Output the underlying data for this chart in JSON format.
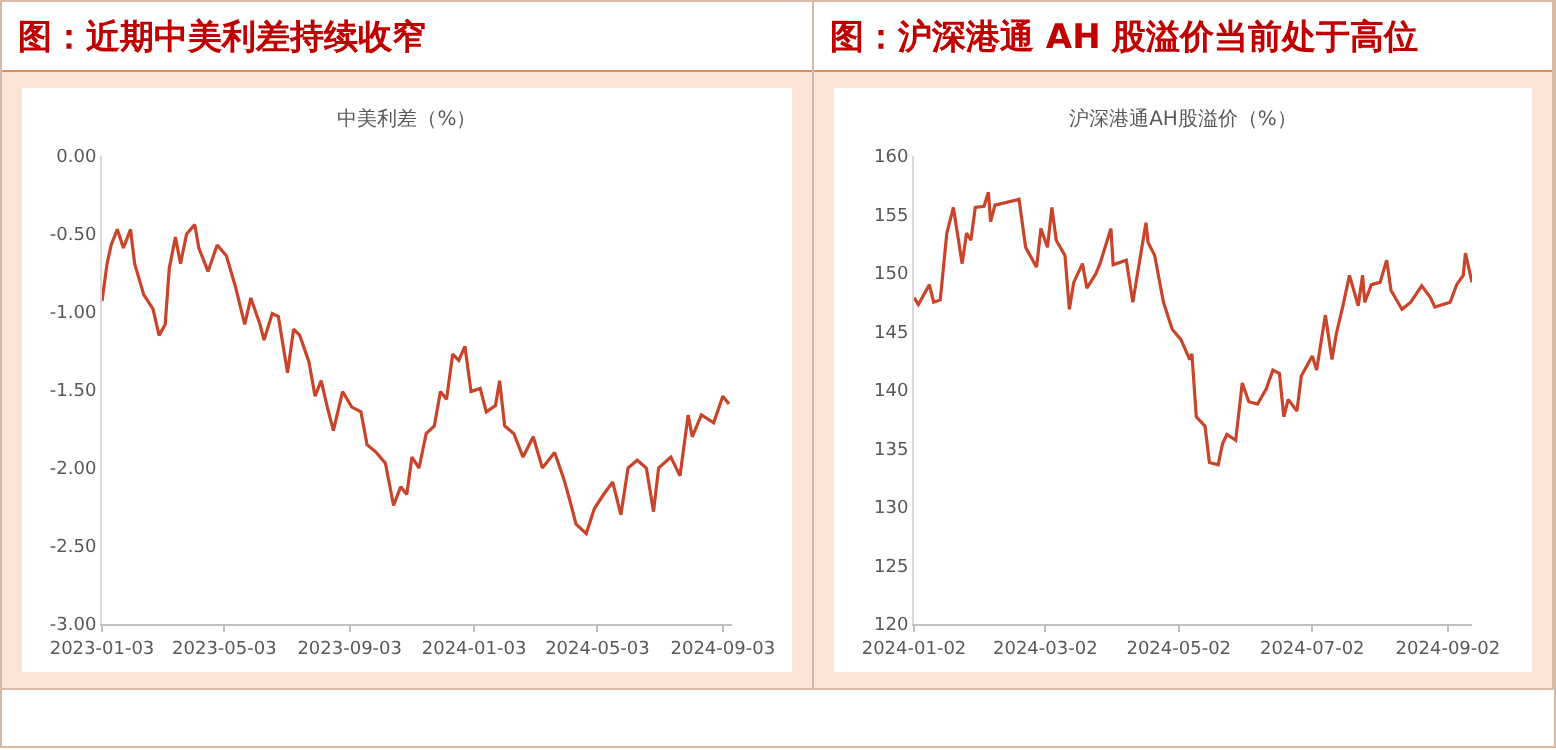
{
  "chart_data": [
    {
      "type": "line",
      "title": "图：近期中美利差持续收窄",
      "subtitle": "中美利差（%）",
      "x": [
        "2023-01-03",
        "2023-01-08",
        "2023-01-12",
        "2023-01-18",
        "2023-01-24",
        "2023-01-31",
        "2023-02-04",
        "2023-02-13",
        "2023-02-22",
        "2023-02-28",
        "2023-03-06",
        "2023-03-10",
        "2023-03-16",
        "2023-03-21",
        "2023-03-27",
        "2023-04-04",
        "2023-04-08",
        "2023-04-17",
        "2023-04-26",
        "2023-05-05",
        "2023-05-14",
        "2023-05-23",
        "2023-05-29",
        "2023-06-07",
        "2023-06-11",
        "2023-06-19",
        "2023-06-25",
        "2023-07-04",
        "2023-07-10",
        "2023-07-16",
        "2023-07-25",
        "2023-07-31",
        "2023-08-06",
        "2023-08-12",
        "2023-08-18",
        "2023-08-27",
        "2023-09-05",
        "2023-09-14",
        "2023-09-20",
        "2023-09-29",
        "2023-10-08",
        "2023-10-16",
        "2023-10-23",
        "2023-10-29",
        "2023-11-03",
        "2023-11-10",
        "2023-11-17",
        "2023-11-25",
        "2023-12-01",
        "2023-12-07",
        "2023-12-13",
        "2023-12-19",
        "2023-12-25",
        "2023-12-31",
        "2024-01-09",
        "2024-01-15",
        "2024-01-24",
        "2024-01-28",
        "2024-02-02",
        "2024-02-11",
        "2024-02-20",
        "2024-03-01",
        "2024-03-10",
        "2024-03-22",
        "2024-03-31",
        "2024-04-06",
        "2024-04-12",
        "2024-04-22",
        "2024-04-30",
        "2024-05-09",
        "2024-05-18",
        "2024-05-26",
        "2024-06-02",
        "2024-06-11",
        "2024-06-20",
        "2024-06-27",
        "2024-07-02",
        "2024-07-14",
        "2024-07-23",
        "2024-07-31",
        "2024-08-04",
        "2024-08-13",
        "2024-08-25",
        "2024-09-03",
        "2024-09-09"
      ],
      "series": [
        {
          "color": "#c8442a",
          "values": [
            -0.93,
            -0.69,
            -0.57,
            -0.47,
            -0.59,
            -0.47,
            -0.69,
            -0.89,
            -0.98,
            -1.15,
            -1.08,
            -0.72,
            -0.52,
            -0.69,
            -0.5,
            -0.44,
            -0.59,
            -0.74,
            -0.57,
            -0.64,
            -0.84,
            -1.08,
            -0.91,
            -1.08,
            -1.18,
            -1.01,
            -1.03,
            -1.39,
            -1.11,
            -1.15,
            -1.32,
            -1.54,
            -1.44,
            -1.61,
            -1.76,
            -1.51,
            -1.61,
            -1.64,
            -1.85,
            -1.9,
            -1.97,
            -2.24,
            -2.12,
            -2.17,
            -1.93,
            -2.0,
            -1.78,
            -1.73,
            -1.51,
            -1.56,
            -1.27,
            -1.31,
            -1.22,
            -1.51,
            -1.49,
            -1.64,
            -1.6,
            -1.44,
            -1.73,
            -1.78,
            -1.93,
            -1.8,
            -2.0,
            -1.9,
            -2.07,
            -2.21,
            -2.36,
            -2.42,
            -2.26,
            -2.17,
            -2.09,
            -2.3,
            -2.0,
            -1.95,
            -2.0,
            -2.28,
            -2.0,
            -1.93,
            -2.05,
            -1.66,
            -1.8,
            -1.66,
            -1.71,
            -1.54,
            -1.59
          ]
        }
      ],
      "xlim": [
        "2023-01-03",
        "2024-09-12"
      ],
      "xticks": [
        "2023-01-03",
        "2023-05-03",
        "2023-09-03",
        "2024-01-03",
        "2024-05-03",
        "2024-09-03"
      ],
      "ylim": [
        -3,
        0
      ],
      "yticks": [
        {
          "value": -3,
          "label": "-3.00"
        },
        {
          "value": -2.5,
          "label": "-2.50"
        },
        {
          "value": -2,
          "label": "-2.00"
        },
        {
          "value": -1.5,
          "label": "-1.50"
        },
        {
          "value": -1,
          "label": "-1.00"
        },
        {
          "value": -0.5,
          "label": "-0.50"
        },
        {
          "value": 0,
          "label": "0.00"
        }
      ]
    },
    {
      "type": "line",
      "title": "图：沪深港通 AH 股溢价当前处于高位",
      "subtitle": "沪深港通AH股溢价（%）",
      "x": [
        "2024-01-02",
        "2024-01-04",
        "2024-01-09",
        "2024-01-11",
        "2024-01-14",
        "2024-01-17",
        "2024-01-20",
        "2024-01-24",
        "2024-01-26",
        "2024-01-28",
        "2024-01-30",
        "2024-02-03",
        "2024-02-05",
        "2024-02-06",
        "2024-02-08",
        "2024-02-19",
        "2024-02-22",
        "2024-02-27",
        "2024-02-29",
        "2024-03-03",
        "2024-03-05",
        "2024-03-07",
        "2024-03-11",
        "2024-03-13",
        "2024-03-15",
        "2024-03-19",
        "2024-03-21",
        "2024-03-25",
        "2024-03-27",
        "2024-04-01",
        "2024-04-02",
        "2024-04-08",
        "2024-04-11",
        "2024-04-17",
        "2024-04-18",
        "2024-04-21",
        "2024-04-25",
        "2024-04-29",
        "2024-05-03",
        "2024-05-07",
        "2024-05-08",
        "2024-05-10",
        "2024-05-14",
        "2024-05-16",
        "2024-05-20",
        "2024-05-22",
        "2024-05-24",
        "2024-05-28",
        "2024-05-31",
        "2024-06-03",
        "2024-06-07",
        "2024-06-11",
        "2024-06-14",
        "2024-06-17",
        "2024-06-19",
        "2024-06-21",
        "2024-06-25",
        "2024-06-27",
        "2024-07-02",
        "2024-07-04",
        "2024-07-08",
        "2024-07-11",
        "2024-07-13",
        "2024-07-16",
        "2024-07-19",
        "2024-07-23",
        "2024-07-25",
        "2024-07-26",
        "2024-07-29",
        "2024-08-02",
        "2024-08-05",
        "2024-08-07",
        "2024-08-12",
        "2024-08-16",
        "2024-08-21",
        "2024-08-25",
        "2024-08-27",
        "2024-09-03",
        "2024-09-06",
        "2024-09-09",
        "2024-09-10",
        "2024-09-13"
      ],
      "series": [
        {
          "color": "#c8442a",
          "values": [
            147.9,
            147.3,
            149.0,
            147.5,
            147.7,
            153.4,
            155.6,
            150.8,
            153.4,
            152.8,
            155.6,
            155.7,
            156.9,
            154.4,
            155.8,
            156.3,
            152.2,
            150.5,
            153.8,
            152.2,
            155.6,
            152.8,
            151.5,
            146.9,
            149.2,
            150.8,
            148.7,
            149.9,
            150.8,
            153.8,
            150.7,
            151.1,
            147.5,
            154.3,
            152.6,
            151.5,
            147.5,
            145.2,
            144.3,
            142.6,
            143.1,
            137.7,
            136.9,
            133.8,
            133.6,
            135.4,
            136.2,
            135.7,
            140.6,
            139.0,
            138.8,
            140.1,
            141.7,
            141.4,
            137.7,
            139.2,
            138.2,
            141.2,
            142.9,
            141.7,
            146.4,
            142.6,
            144.8,
            147.2,
            149.8,
            147.2,
            149.8,
            147.5,
            149.0,
            149.2,
            151.1,
            148.5,
            146.9,
            147.5,
            148.9,
            147.9,
            147.1,
            147.5,
            149.0,
            149.8,
            151.7,
            149.2
          ]
        }
      ],
      "xlim": [
        "2024-01-02",
        "2024-09-13"
      ],
      "xticks": [
        "2024-01-02",
        "2024-03-02",
        "2024-05-02",
        "2024-07-02",
        "2024-09-02"
      ],
      "ylim": [
        120,
        160
      ],
      "yticks": [
        120,
        125,
        130,
        135,
        140,
        145,
        150,
        155,
        160
      ]
    }
  ]
}
